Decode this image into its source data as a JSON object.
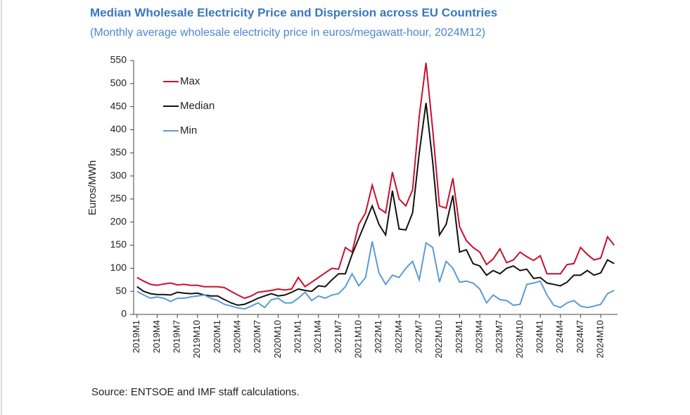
{
  "chart_data": {
    "type": "line",
    "title": "Median Wholesale Electricity Price and Dispersion across EU Countries",
    "subtitle": "(Monthly average wholesale electricity price in euros/megawatt-hour, 2024M12)",
    "y_label": "Euros/MWh",
    "source": "Source: ENTSOE and IMF staff calculations.",
    "categories": [
      "2019M1",
      null,
      null,
      "2019M4",
      null,
      null,
      "2019M7",
      null,
      null,
      "2019M10",
      null,
      null,
      "2020M1",
      null,
      null,
      "2020M4",
      null,
      null,
      "2020M7",
      null,
      null,
      "2020M10",
      null,
      null,
      "2021M1",
      null,
      null,
      "2021M4",
      null,
      null,
      "2021M7",
      null,
      null,
      "2021M10",
      null,
      null,
      "2022M1",
      null,
      null,
      "2022M4",
      null,
      null,
      "2022M7",
      null,
      null,
      "2022M10",
      null,
      null,
      "2023M1",
      null,
      null,
      "2023M4",
      null,
      null,
      "2023M7",
      null,
      null,
      "2023M10",
      null,
      null,
      "2024M1",
      null,
      null,
      "2024M4",
      null,
      null,
      "2024M7",
      null,
      null,
      "2024M10",
      null,
      null
    ],
    "series": [
      {
        "name": "Max",
        "color": "#c8102e",
        "values": [
          80,
          72,
          65,
          63,
          66,
          68,
          64,
          65,
          63,
          63,
          60,
          60,
          60,
          58,
          50,
          42,
          35,
          40,
          48,
          50,
          52,
          55,
          53,
          55,
          80,
          60,
          70,
          80,
          90,
          100,
          98,
          145,
          135,
          195,
          220,
          280,
          230,
          220,
          308,
          250,
          235,
          270,
          430,
          545,
          400,
          235,
          230,
          295,
          190,
          160,
          145,
          135,
          108,
          120,
          142,
          112,
          118,
          135,
          125,
          117,
          127,
          88,
          88,
          88,
          108,
          110,
          145,
          130,
          118,
          122,
          168,
          150
        ]
      },
      {
        "name": "Median",
        "color": "#111111",
        "values": [
          60,
          50,
          45,
          43,
          43,
          42,
          48,
          46,
          45,
          46,
          42,
          40,
          40,
          32,
          25,
          20,
          22,
          28,
          35,
          40,
          45,
          40,
          42,
          48,
          55,
          52,
          50,
          62,
          60,
          75,
          88,
          88,
          130,
          165,
          200,
          235,
          195,
          172,
          268,
          185,
          183,
          220,
          350,
          458,
          330,
          172,
          195,
          258,
          135,
          140,
          110,
          105,
          85,
          95,
          88,
          100,
          105,
          95,
          98,
          78,
          80,
          68,
          65,
          62,
          70,
          85,
          85,
          95,
          85,
          90,
          118,
          110
        ]
      },
      {
        "name": "Min",
        "color": "#5b9bd5",
        "values": [
          50,
          42,
          35,
          38,
          35,
          28,
          35,
          35,
          38,
          40,
          42,
          35,
          30,
          22,
          18,
          14,
          12,
          18,
          25,
          15,
          32,
          35,
          25,
          25,
          35,
          48,
          30,
          40,
          35,
          42,
          45,
          60,
          88,
          62,
          80,
          158,
          90,
          65,
          85,
          80,
          100,
          115,
          75,
          155,
          145,
          70,
          115,
          100,
          70,
          72,
          68,
          55,
          25,
          42,
          32,
          30,
          20,
          22,
          65,
          68,
          72,
          42,
          20,
          15,
          25,
          30,
          18,
          15,
          18,
          22,
          45,
          52
        ]
      }
    ],
    "ylim": [
      0,
      550
    ],
    "yticks": [
      0,
      50,
      100,
      150,
      200,
      250,
      300,
      350,
      400,
      450,
      500,
      550
    ]
  }
}
